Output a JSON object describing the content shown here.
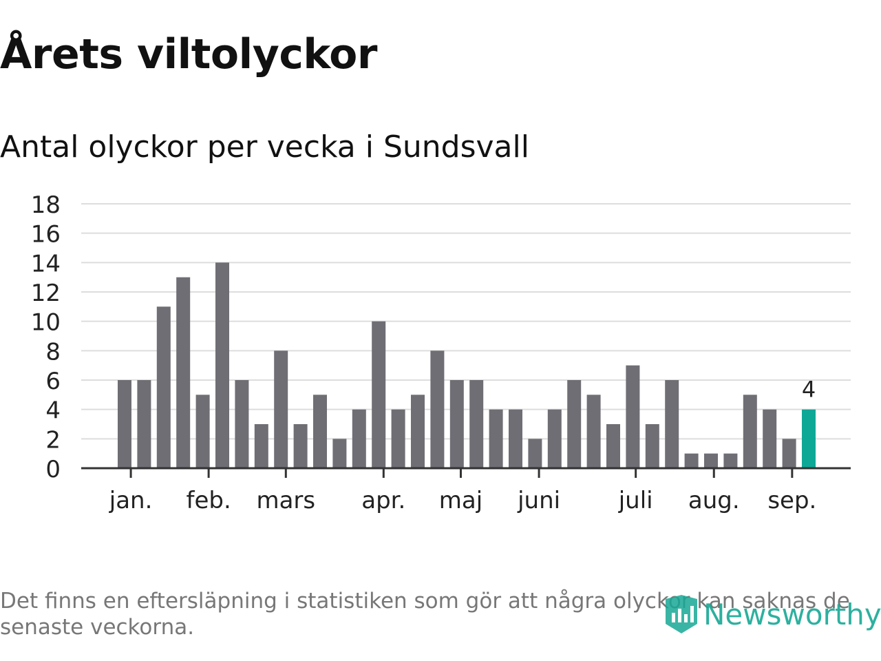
{
  "header": {
    "title": "Årets viltolyckor",
    "subtitle": "Antal olyckor per vecka i Sundsvall"
  },
  "chart_data": {
    "type": "bar",
    "title": "Årets viltolyckor",
    "subtitle": "Antal olyckor per vecka i Sundsvall",
    "xlabel": "",
    "ylabel": "",
    "ylim": [
      0,
      18
    ],
    "yticks": [
      0,
      2,
      4,
      6,
      8,
      10,
      12,
      14,
      16,
      18
    ],
    "grid": true,
    "values": [
      6,
      6,
      11,
      13,
      5,
      14,
      6,
      3,
      8,
      3,
      5,
      2,
      4,
      10,
      4,
      5,
      8,
      6,
      6,
      4,
      4,
      2,
      4,
      6,
      5,
      3,
      7,
      3,
      6,
      1,
      1,
      1,
      5,
      4,
      2,
      4
    ],
    "month_ticks": [
      {
        "label": "jan.",
        "week": 1.32
      },
      {
        "label": "feb.",
        "week": 5.3
      },
      {
        "label": "mars",
        "week": 9.25
      },
      {
        "label": "apr.",
        "week": 14.25
      },
      {
        "label": "maj",
        "week": 18.2
      },
      {
        "label": "juni",
        "week": 22.2
      },
      {
        "label": "juli",
        "week": 27.15
      },
      {
        "label": "aug.",
        "week": 31.15
      },
      {
        "label": "sep.",
        "week": 35.15
      }
    ],
    "highlight_index": 35,
    "highlight_label": "4",
    "bar_color": "#6f6e74",
    "highlight_color": "#0ea896",
    "grid_color": "#dddddd"
  },
  "footnote": "Det finns en eftersläpning i statistiken som gör att några olyckor kan saknas de senaste veckorna.",
  "logo": {
    "text": "Newsworthy",
    "icon": "newsworthy-chart-icon",
    "color": "#17a895"
  }
}
